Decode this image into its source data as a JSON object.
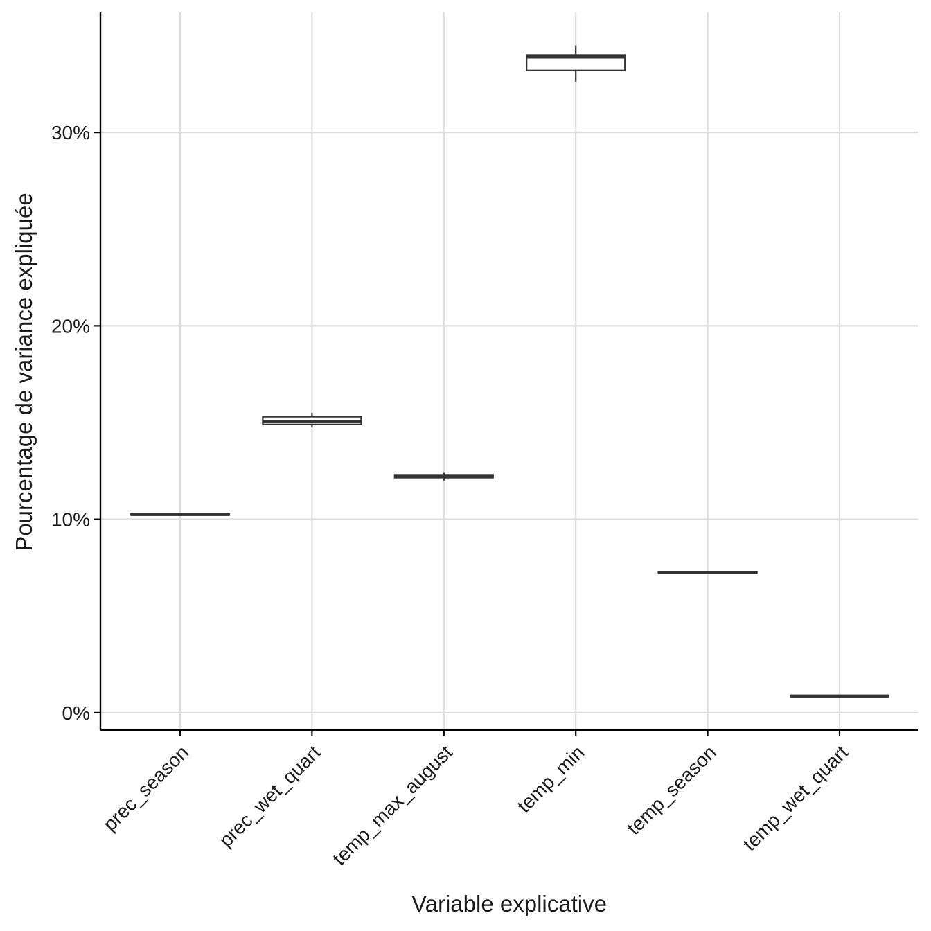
{
  "chart_data": {
    "type": "boxplot",
    "xlabel": "Variable explicative",
    "ylabel": "Pourcentage de variance expliquée",
    "ylim": [
      -0.9,
      36.2
    ],
    "yticks": [
      0,
      10,
      20,
      30
    ],
    "ytick_labels": [
      "0%",
      "10%",
      "20%",
      "30%"
    ],
    "grid": true,
    "categories": [
      "prec_season",
      "prec_wet_quart",
      "temp_max_august",
      "temp_min",
      "temp_season",
      "temp_wet_quart"
    ],
    "boxes": [
      {
        "category": "prec_season",
        "whisker_low": 10.18,
        "q1": 10.22,
        "median": 10.25,
        "q3": 10.28,
        "whisker_high": 10.32
      },
      {
        "category": "prec_wet_quart",
        "whisker_low": 14.75,
        "q1": 14.9,
        "median": 15.05,
        "q3": 15.3,
        "whisker_high": 15.5
      },
      {
        "category": "temp_max_august",
        "whisker_low": 12.0,
        "q1": 12.15,
        "median": 12.22,
        "q3": 12.3,
        "whisker_high": 12.4
      },
      {
        "category": "temp_min",
        "whisker_low": 32.6,
        "q1": 33.2,
        "median": 33.9,
        "q3": 34.0,
        "whisker_high": 34.5
      },
      {
        "category": "temp_season",
        "whisker_low": 7.2,
        "q1": 7.22,
        "median": 7.24,
        "q3": 7.26,
        "whisker_high": 7.28
      },
      {
        "category": "temp_wet_quart",
        "whisker_low": 0.82,
        "q1": 0.84,
        "median": 0.86,
        "q3": 0.88,
        "whisker_high": 0.9
      }
    ],
    "colors": {
      "box_line": "#333333",
      "grid": "#dcdcdc",
      "axis": "#000000"
    }
  }
}
